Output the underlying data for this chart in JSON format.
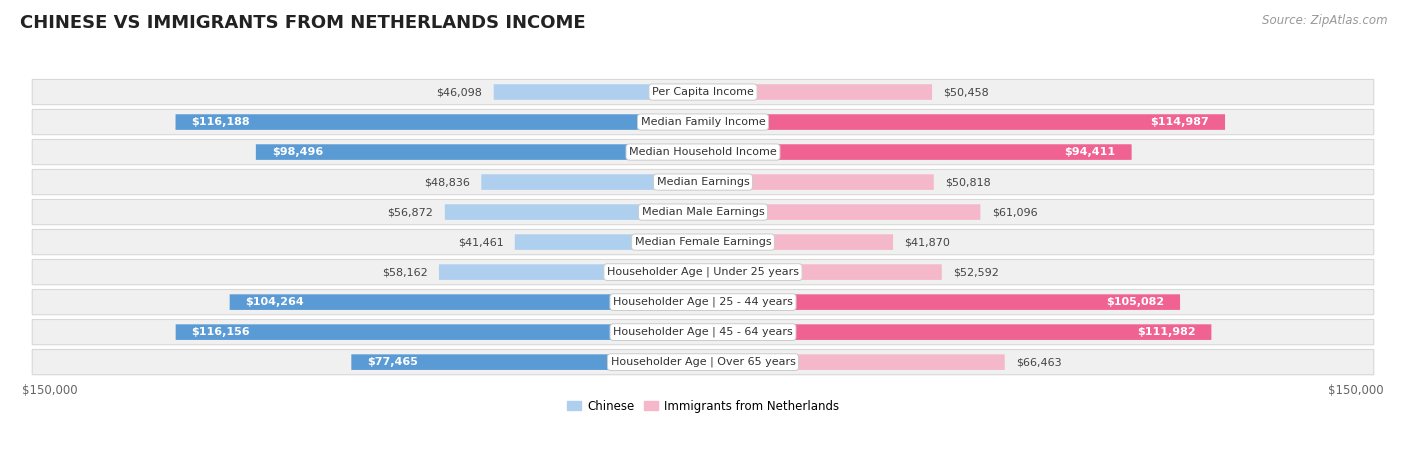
{
  "title": "CHINESE VS IMMIGRANTS FROM NETHERLANDS INCOME",
  "source": "Source: ZipAtlas.com",
  "max_value": 150000,
  "bar_height": 0.52,
  "chinese_color_light": "#aed0ee",
  "chinese_color_dark": "#5b9bd5",
  "netherlands_color_light": "#f5b8cb",
  "netherlands_color_dark": "#f06292",
  "bg_color": "#ffffff",
  "row_bg": "#f0f0f0",
  "row_border": "#d8d8d8",
  "categories": [
    "Per Capita Income",
    "Median Family Income",
    "Median Household Income",
    "Median Earnings",
    "Median Male Earnings",
    "Median Female Earnings",
    "Householder Age | Under 25 years",
    "Householder Age | 25 - 44 years",
    "Householder Age | 45 - 64 years",
    "Householder Age | Over 65 years"
  ],
  "chinese_values": [
    46098,
    116188,
    98496,
    48836,
    56872,
    41461,
    58162,
    104264,
    116156,
    77465
  ],
  "netherlands_values": [
    50458,
    114987,
    94411,
    50818,
    61096,
    41870,
    52592,
    105082,
    111982,
    66463
  ],
  "chinese_labels": [
    "$46,098",
    "$116,188",
    "$98,496",
    "$48,836",
    "$56,872",
    "$41,461",
    "$58,162",
    "$104,264",
    "$116,156",
    "$77,465"
  ],
  "netherlands_labels": [
    "$50,458",
    "$114,987",
    "$94,411",
    "$50,818",
    "$61,096",
    "$41,870",
    "$52,592",
    "$105,082",
    "$111,982",
    "$66,463"
  ],
  "large_threshold": 70000,
  "legend_chinese": "Chinese",
  "legend_netherlands": "Immigrants from Netherlands",
  "xlabel_left": "$150,000",
  "xlabel_right": "$150,000",
  "title_fontsize": 13,
  "source_fontsize": 8.5,
  "label_fontsize": 8,
  "category_fontsize": 8,
  "legend_fontsize": 8.5,
  "axis_label_fontsize": 8.5
}
